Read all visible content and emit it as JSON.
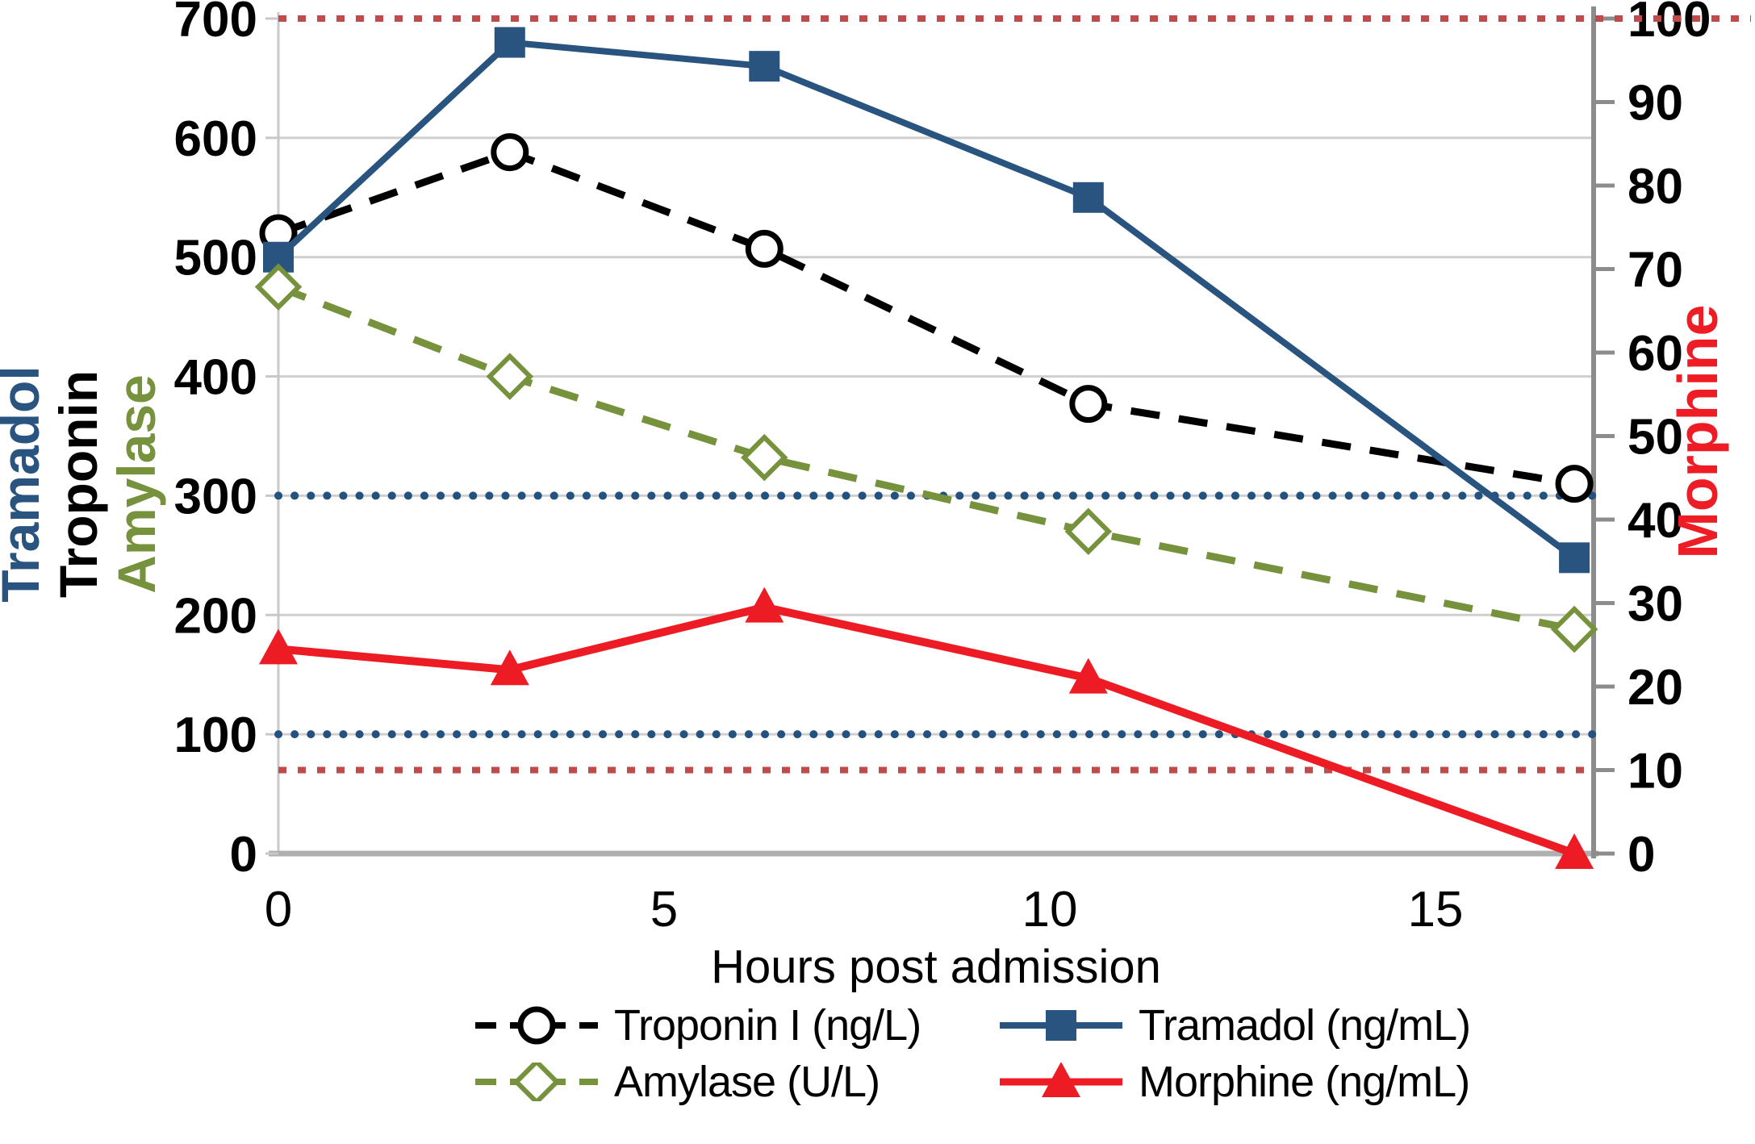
{
  "figure": {
    "x_axis": {
      "title": "Hours post admission",
      "ticks": [
        0,
        5,
        10,
        15
      ],
      "min": 0,
      "max": 17.05
    },
    "left_axis": {
      "titles": [
        {
          "text": "Tramadol",
          "color": "#29547F"
        },
        {
          "text": "Troponin",
          "color": "#000000"
        },
        {
          "text": "Amylase",
          "color": "#76923C"
        }
      ],
      "min": 0,
      "max": 700,
      "ticks": [
        0,
        100,
        200,
        300,
        400,
        500,
        600,
        700
      ]
    },
    "right_axis": {
      "title": {
        "text": "Morphine",
        "color": "#EE1C25"
      },
      "min": 0,
      "max": 100,
      "ticks": [
        0,
        10,
        20,
        30,
        40,
        50,
        60,
        70,
        80,
        90,
        100
      ]
    },
    "colors": {
      "gridline": "#CFCFCF",
      "bottom_spine": "#AFAFAF",
      "left_spine": "#C8C8C8",
      "right_spine": "#8C8C8C",
      "tick_text": "#000000"
    }
  },
  "chart_data": {
    "type": "line",
    "x": [
      0,
      3,
      6.3,
      10.5,
      16.8
    ],
    "xlabel": "Hours post admission",
    "xlim": [
      0,
      17.05
    ],
    "left_ylim": [
      0,
      700
    ],
    "right_ylim": [
      0,
      100
    ],
    "grid": true,
    "legend_position": "bottom",
    "series": [
      {
        "name": "Troponin I (ng/L)",
        "axis": "left",
        "color": "#000000",
        "line": "dashed",
        "marker": "circle-open",
        "values": [
          520,
          588,
          507,
          377,
          310
        ]
      },
      {
        "name": "Tramadol (ng/mL)",
        "axis": "left",
        "color": "#29547F",
        "line": "solid",
        "marker": "square",
        "values": [
          500,
          680,
          660,
          550,
          248
        ]
      },
      {
        "name": "Amylase (U/L)",
        "axis": "left",
        "color": "#76923C",
        "line": "dashed",
        "marker": "diamond-open",
        "values": [
          475,
          400,
          332,
          270,
          188
        ]
      },
      {
        "name": "Morphine (ng/mL)",
        "axis": "right",
        "color": "#ED1C24",
        "line": "solid",
        "marker": "triangle",
        "values": [
          24.5,
          22,
          29.5,
          21,
          0
        ]
      }
    ],
    "reference_lines": [
      {
        "name": "morphine-ref-upper",
        "axis": "right",
        "value": 100,
        "color": "#BF4B4B",
        "style": "dotted",
        "extend_past_axis": true
      },
      {
        "name": "tramadol-ref-upper",
        "axis": "left",
        "value": 300,
        "color": "#24527E",
        "style": "round-dot",
        "extend_past_axis": false
      },
      {
        "name": "tramadol-ref-lower",
        "axis": "left",
        "value": 100,
        "color": "#24527E",
        "style": "round-dot",
        "extend_past_axis": false
      },
      {
        "name": "morphine-ref-lower",
        "axis": "right",
        "value": 10,
        "color": "#BF4B4B",
        "style": "dotted",
        "extend_past_axis": false
      }
    ]
  },
  "legend": {
    "items": [
      {
        "label": "Troponin I (ng/L)"
      },
      {
        "label": "Tramadol (ng/mL)"
      },
      {
        "label": "Amylase (U/L)"
      },
      {
        "label": "Morphine (ng/mL)"
      }
    ]
  }
}
